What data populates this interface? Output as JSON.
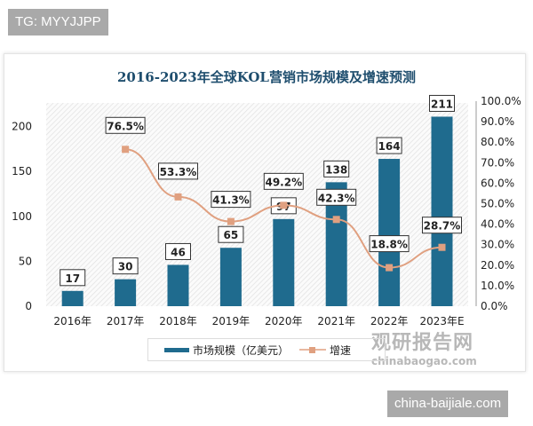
{
  "watermarks": {
    "top_left": "TG: MYYJJPP",
    "bottom_right": "china-baijiale.com",
    "logo_cn": "观研报告网",
    "logo_en": "chinabaogao.com"
  },
  "chart_data": {
    "type": "bar+line",
    "title": "2016-2023年全球KOL营销市场规模及增速预测",
    "categories": [
      "2016年",
      "2017年",
      "2018年",
      "2019年",
      "2020年",
      "2021年",
      "2022年",
      "2023年E"
    ],
    "series": [
      {
        "name": "市场规模（亿美元）",
        "type": "bar",
        "axis": "left",
        "color": "#1f6b8e",
        "values": [
          17,
          30,
          46,
          65,
          97,
          138,
          164,
          211
        ],
        "labels": [
          "17",
          "30",
          "46",
          "65",
          "97",
          "138",
          "164",
          "211"
        ]
      },
      {
        "name": "增速",
        "type": "line",
        "axis": "right",
        "color": "#e0a080",
        "values": [
          null,
          76.5,
          53.3,
          41.3,
          49.2,
          42.3,
          18.8,
          28.7
        ],
        "labels": [
          "",
          "76.5%",
          "53.3%",
          "41.3%",
          "49.2%",
          "42.3%",
          "18.8%",
          "28.7%"
        ]
      }
    ],
    "left_axis": {
      "ticks": [
        "0",
        "50",
        "100",
        "150",
        "200"
      ],
      "tick_values": [
        0,
        50,
        100,
        150,
        200
      ]
    },
    "right_axis": {
      "ticks": [
        "0.0%",
        "10.0%",
        "20.0%",
        "30.0%",
        "40.0%",
        "50.0%",
        "60.0%",
        "70.0%",
        "80.0%",
        "90.0%",
        "100.0%"
      ],
      "range": [
        0,
        100
      ]
    },
    "legend_placement": "bottom"
  }
}
